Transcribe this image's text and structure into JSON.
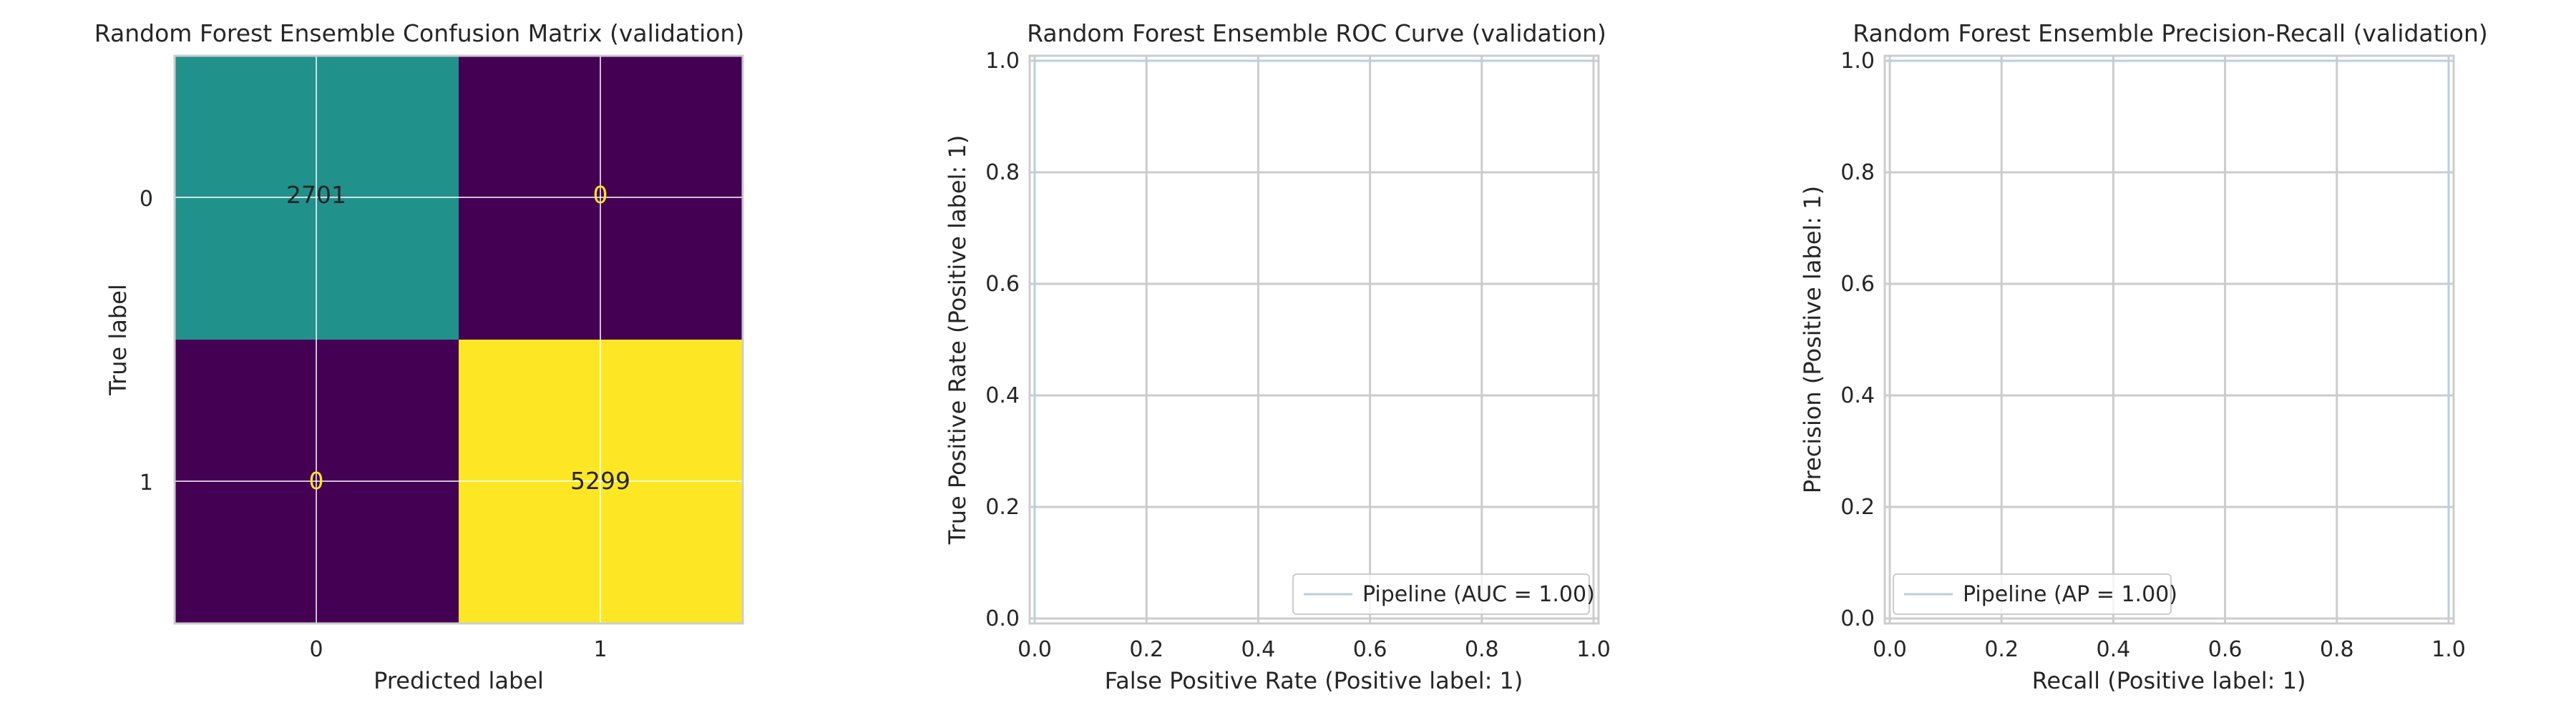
{
  "chart_data": [
    {
      "type": "heatmap",
      "title": "Random Forest Ensemble Confusion Matrix (validation)",
      "xlabel": "Predicted label",
      "ylabel": "True label",
      "x_ticks": [
        "0",
        "1"
      ],
      "y_ticks": [
        "0",
        "1"
      ],
      "values": [
        [
          2701,
          0
        ],
        [
          0,
          5299
        ]
      ],
      "colormap": "viridis",
      "cell_colors": [
        [
          "#21918c",
          "#440154"
        ],
        [
          "#440154",
          "#fde725"
        ]
      ],
      "text_colors": [
        [
          "#262626",
          "#fde725"
        ],
        [
          "#fde725",
          "#262626"
        ]
      ],
      "grid": true
    },
    {
      "type": "line",
      "title": "Random Forest Ensemble ROC Curve (validation)",
      "xlabel": "False Positive Rate (Positive label: 1)",
      "ylabel": "True Positive Rate (Positive label: 1)",
      "xlim": [
        0.0,
        1.0
      ],
      "ylim": [
        0.0,
        1.0
      ],
      "x_ticks": [
        "0.0",
        "0.2",
        "0.4",
        "0.6",
        "0.8",
        "1.0"
      ],
      "y_ticks": [
        "0.0",
        "0.2",
        "0.4",
        "0.6",
        "0.8",
        "1.0"
      ],
      "series": [
        {
          "name": "Pipeline (AUC = 1.00)",
          "color": "#b9cfe0",
          "x": [
            0.0,
            0.0,
            1.0
          ],
          "y": [
            0.0,
            1.0,
            1.0
          ]
        }
      ],
      "legend": "lower right",
      "grid": true
    },
    {
      "type": "line",
      "title": "Random Forest Ensemble Precision-Recall (validation)",
      "xlabel": "Recall (Positive label: 1)",
      "ylabel": "Precision (Positive label: 1)",
      "xlim": [
        0.0,
        1.0
      ],
      "ylim": [
        0.0,
        1.0
      ],
      "x_ticks": [
        "0.0",
        "0.2",
        "0.4",
        "0.6",
        "0.8",
        "1.0"
      ],
      "y_ticks": [
        "0.0",
        "0.2",
        "0.4",
        "0.6",
        "0.8",
        "1.0"
      ],
      "series": [
        {
          "name": "Pipeline (AP = 1.00)",
          "color": "#b9cfe0",
          "x": [
            0.0,
            1.0,
            1.0
          ],
          "y": [
            1.0,
            1.0,
            0.0
          ]
        }
      ],
      "legend": "lower left",
      "grid": true
    }
  ]
}
